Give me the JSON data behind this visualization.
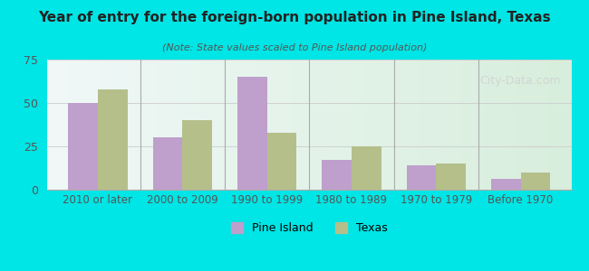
{
  "title": "Year of entry for the foreign-born population in Pine Island, Texas",
  "subtitle": "(Note: State values scaled to Pine Island population)",
  "categories": [
    "2010 or later",
    "2000 to 2009",
    "1990 to 1999",
    "1980 to 1989",
    "1970 to 1979",
    "Before 1970"
  ],
  "pine_island_values": [
    50,
    30,
    65,
    17,
    14,
    6
  ],
  "texas_values": [
    58,
    40,
    33,
    25,
    15,
    10
  ],
  "pine_island_color": "#bf9fcc",
  "texas_color": "#b5bf8a",
  "background_outer": "#00e5e5",
  "background_inner_top": "#f0f8f8",
  "background_inner_bottom": "#d8eedc",
  "ylim": [
    0,
    75
  ],
  "yticks": [
    0,
    25,
    50,
    75
  ],
  "bar_width": 0.35,
  "legend_pine_island": "Pine Island",
  "legend_texas": "Texas",
  "watermark": "City-Data.com"
}
